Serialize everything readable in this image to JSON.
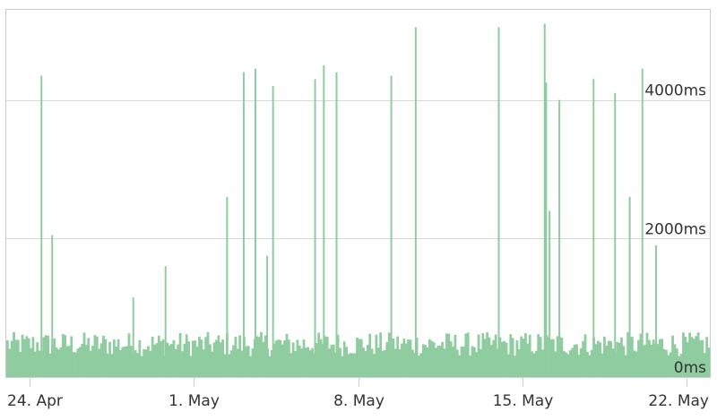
{
  "chart_data": {
    "type": "bar",
    "title": "",
    "xlabel": "",
    "ylabel": "",
    "x_axis": {
      "type": "date",
      "range": [
        "2023-04-23",
        "2023-05-23"
      ],
      "tick_labels": [
        "24. Apr",
        "1. May",
        "8. May",
        "15. May",
        "22. May"
      ]
    },
    "y_axis": {
      "unit": "ms",
      "range": [
        0,
        5300
      ],
      "tick_values": [
        0,
        2000,
        4000
      ],
      "tick_labels": [
        "0ms",
        "2000ms",
        "4000ms"
      ],
      "gridlines": true,
      "labels_position": "inside-right"
    },
    "series": [
      {
        "color": "#8fcc9f",
        "baseline_range_ms": [
          300,
          650
        ],
        "spikes": [
          {
            "x": "2023-04-24T12:00",
            "y": 4350
          },
          {
            "x": "2023-04-24T23:00",
            "y": 2050
          },
          {
            "x": "2023-04-28T10:00",
            "y": 1150
          },
          {
            "x": "2023-04-29T19:00",
            "y": 1600
          },
          {
            "x": "2023-05-02T10:00",
            "y": 2600
          },
          {
            "x": "2023-05-03T03:00",
            "y": 4400
          },
          {
            "x": "2023-05-03T15:00",
            "y": 4450
          },
          {
            "x": "2023-05-04T03:00",
            "y": 1750
          },
          {
            "x": "2023-05-04T09:00",
            "y": 4200
          },
          {
            "x": "2023-05-06T04:00",
            "y": 4300
          },
          {
            "x": "2023-05-06T13:00",
            "y": 4500
          },
          {
            "x": "2023-05-07T02:00",
            "y": 4400
          },
          {
            "x": "2023-05-09T10:00",
            "y": 4350
          },
          {
            "x": "2023-05-10T11:00",
            "y": 5050
          },
          {
            "x": "2023-05-14T00:00",
            "y": 5050
          },
          {
            "x": "2023-05-15T23:00",
            "y": 5100
          },
          {
            "x": "2023-05-16T00:30",
            "y": 4250
          },
          {
            "x": "2023-05-16T04:00",
            "y": 2400
          },
          {
            "x": "2023-05-16T14:00",
            "y": 4000
          },
          {
            "x": "2023-05-18T01:00",
            "y": 4300
          },
          {
            "x": "2023-05-18T23:00",
            "y": 4100
          },
          {
            "x": "2023-05-19T14:00",
            "y": 2600
          },
          {
            "x": "2023-05-20T03:00",
            "y": 4450
          },
          {
            "x": "2023-05-20T17:00",
            "y": 1900
          }
        ]
      }
    ],
    "colors": {
      "bar": "#8fcc9f",
      "grid": "#d8d8d8",
      "frame": "#cccccc",
      "axis": "#c0d0e0"
    }
  }
}
